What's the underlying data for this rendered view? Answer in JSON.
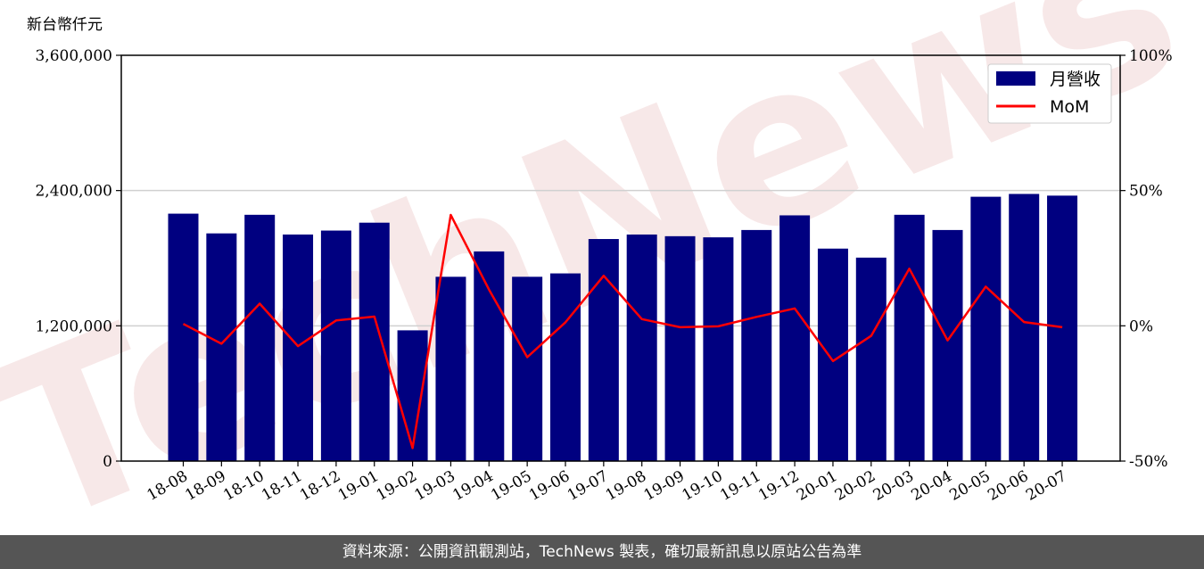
{
  "chart_data": {
    "type": "bar",
    "y_unit_label": "新台幣仟元",
    "categories": [
      "18-08",
      "18-09",
      "18-10",
      "18-11",
      "18-12",
      "19-01",
      "19-02",
      "19-03",
      "19-04",
      "19-05",
      "19-06",
      "19-07",
      "19-08",
      "19-09",
      "19-10",
      "19-11",
      "19-12",
      "20-01",
      "20-02",
      "20-03",
      "20-04",
      "20-05",
      "20-06",
      "20-07"
    ],
    "series": [
      {
        "name": "月營收",
        "type": "bar",
        "axis": "left",
        "color": "#000080",
        "values": [
          2195000,
          2020000,
          2185000,
          2010000,
          2045000,
          2115000,
          1160000,
          1635000,
          1860000,
          1635000,
          1665000,
          1970000,
          2010000,
          1995000,
          1985000,
          2050000,
          2180000,
          1885000,
          1805000,
          2185000,
          2050000,
          2345000,
          2370000,
          2355000
        ]
      },
      {
        "name": "MoM",
        "type": "line",
        "axis": "right",
        "color": "#ff0000",
        "values": [
          0.7,
          -6.6,
          8.2,
          -7.5,
          2.0,
          3.4,
          -45.2,
          41.0,
          13.4,
          -11.6,
          1.3,
          18.5,
          2.5,
          -0.5,
          -0.2,
          3.3,
          6.4,
          -13.0,
          -3.7,
          21.1,
          -5.4,
          14.5,
          1.4,
          -0.5
        ]
      }
    ],
    "y_left": {
      "range": [
        0,
        3600000
      ],
      "ticks": [
        "0",
        "1,200,000",
        "2,400,000",
        "3,600,000"
      ]
    },
    "y_right": {
      "range": [
        -50,
        100
      ],
      "ticks": [
        "-50%",
        "0%",
        "50%",
        "100%"
      ]
    },
    "grid": "horizontal",
    "legend_position": "top-right"
  },
  "watermark": "TechNews",
  "footer_text": "資料來源：公開資訊觀測站，TechNews 製表，確切最新訊息以原站公告為準"
}
